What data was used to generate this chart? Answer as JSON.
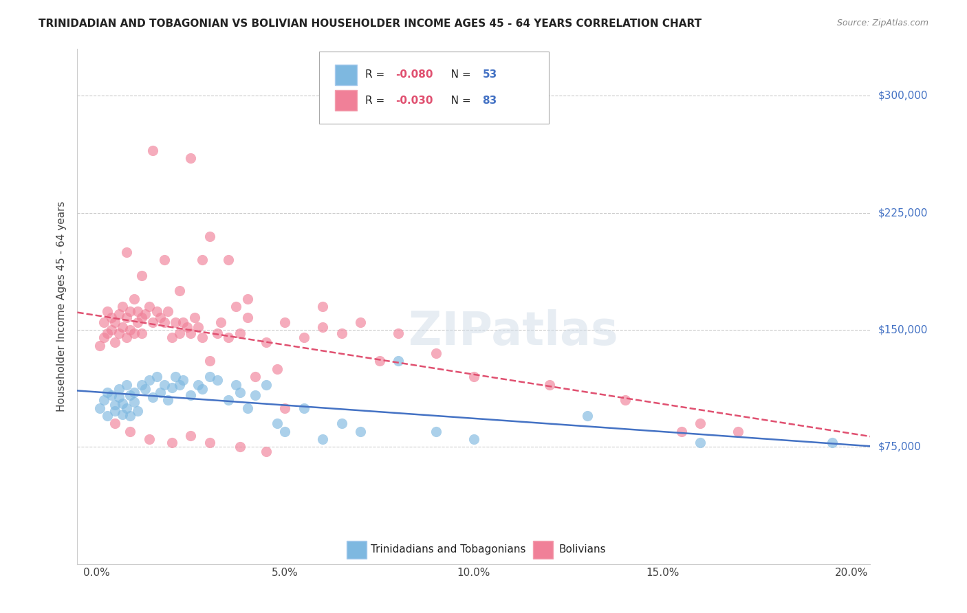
{
  "title": "TRINIDADIAN AND TOBAGONIAN VS BOLIVIAN HOUSEHOLDER INCOME AGES 45 - 64 YEARS CORRELATION CHART",
  "source": "Source: ZipAtlas.com",
  "ylabel": "Householder Income Ages 45 - 64 years",
  "xlabel_ticks": [
    "0.0%",
    "5.0%",
    "10.0%",
    "15.0%",
    "20.0%"
  ],
  "xlabel_vals": [
    0.0,
    0.05,
    0.1,
    0.15,
    0.2
  ],
  "ytick_labels": [
    "$75,000",
    "$150,000",
    "$225,000",
    "$300,000"
  ],
  "ytick_vals": [
    75000,
    150000,
    225000,
    300000
  ],
  "ylim": [
    0,
    330000
  ],
  "xlim": [
    -0.005,
    0.205
  ],
  "legend_entries": [
    {
      "label": "R = -0.080   N = 53",
      "color": "#a8c4e0"
    },
    {
      "label": "R = -0.030   N = 83",
      "color": "#f4a7b9"
    }
  ],
  "legend_title_blue": "Trinidadians and Tobagonians",
  "legend_title_pink": "Bolivians",
  "watermark": "ZIPatlas",
  "tnt_R": -0.08,
  "tnt_N": 53,
  "bol_R": -0.03,
  "bol_N": 83,
  "blue_color": "#7eb8e0",
  "pink_color": "#f08098",
  "line_blue": "#4472c4",
  "line_pink": "#e05070",
  "tnt_scatter_x": [
    0.001,
    0.002,
    0.003,
    0.003,
    0.004,
    0.005,
    0.005,
    0.006,
    0.006,
    0.007,
    0.007,
    0.008,
    0.008,
    0.009,
    0.009,
    0.01,
    0.01,
    0.011,
    0.012,
    0.013,
    0.014,
    0.015,
    0.016,
    0.017,
    0.018,
    0.019,
    0.02,
    0.021,
    0.022,
    0.023,
    0.025,
    0.027,
    0.028,
    0.03,
    0.032,
    0.035,
    0.037,
    0.038,
    0.04,
    0.042,
    0.045,
    0.048,
    0.05,
    0.055,
    0.06,
    0.065,
    0.07,
    0.08,
    0.09,
    0.1,
    0.13,
    0.16,
    0.195
  ],
  "tnt_scatter_y": [
    100000,
    105000,
    95000,
    110000,
    108000,
    102000,
    98000,
    107000,
    112000,
    103000,
    96000,
    115000,
    100000,
    108000,
    95000,
    110000,
    104000,
    98000,
    115000,
    112000,
    118000,
    107000,
    120000,
    110000,
    115000,
    105000,
    113000,
    120000,
    115000,
    118000,
    108000,
    115000,
    112000,
    120000,
    118000,
    105000,
    115000,
    110000,
    100000,
    108000,
    115000,
    90000,
    85000,
    100000,
    80000,
    90000,
    85000,
    130000,
    85000,
    80000,
    95000,
    78000,
    78000
  ],
  "bol_scatter_x": [
    0.001,
    0.002,
    0.002,
    0.003,
    0.003,
    0.004,
    0.004,
    0.005,
    0.005,
    0.006,
    0.006,
    0.007,
    0.007,
    0.008,
    0.008,
    0.009,
    0.009,
    0.01,
    0.01,
    0.011,
    0.011,
    0.012,
    0.012,
    0.013,
    0.014,
    0.015,
    0.016,
    0.017,
    0.018,
    0.019,
    0.02,
    0.021,
    0.022,
    0.023,
    0.024,
    0.025,
    0.026,
    0.027,
    0.028,
    0.03,
    0.032,
    0.033,
    0.035,
    0.037,
    0.038,
    0.04,
    0.042,
    0.045,
    0.048,
    0.05,
    0.055,
    0.06,
    0.065,
    0.07,
    0.075,
    0.08,
    0.09,
    0.1,
    0.12,
    0.14,
    0.155,
    0.16,
    0.17,
    0.015,
    0.025,
    0.03,
    0.035,
    0.008,
    0.012,
    0.018,
    0.022,
    0.028,
    0.04,
    0.05,
    0.06,
    0.005,
    0.009,
    0.014,
    0.02,
    0.025,
    0.03,
    0.038,
    0.045
  ],
  "bol_scatter_y": [
    140000,
    145000,
    155000,
    148000,
    162000,
    150000,
    158000,
    142000,
    155000,
    148000,
    160000,
    152000,
    165000,
    145000,
    158000,
    150000,
    162000,
    148000,
    170000,
    155000,
    162000,
    148000,
    158000,
    160000,
    165000,
    155000,
    162000,
    158000,
    155000,
    162000,
    145000,
    155000,
    148000,
    155000,
    152000,
    148000,
    158000,
    152000,
    145000,
    130000,
    148000,
    155000,
    145000,
    165000,
    148000,
    158000,
    120000,
    142000,
    125000,
    100000,
    145000,
    152000,
    148000,
    155000,
    130000,
    148000,
    135000,
    120000,
    115000,
    105000,
    85000,
    90000,
    85000,
    265000,
    260000,
    210000,
    195000,
    200000,
    185000,
    195000,
    175000,
    195000,
    170000,
    155000,
    165000,
    90000,
    85000,
    80000,
    78000,
    82000,
    78000,
    75000,
    72000
  ]
}
